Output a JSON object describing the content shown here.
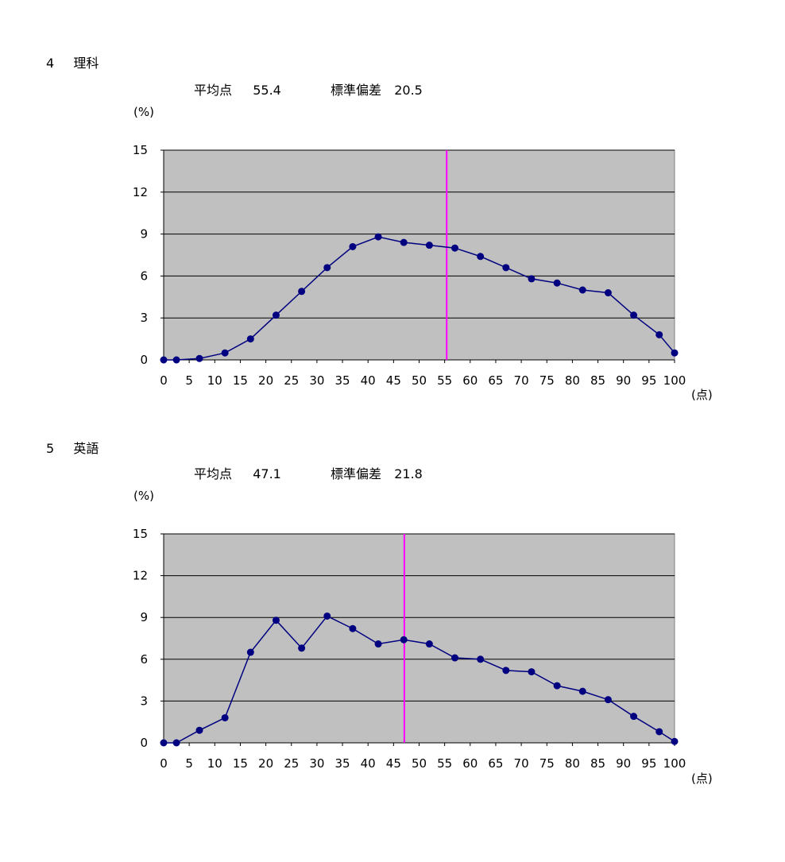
{
  "sections": [
    {
      "number": "4",
      "subject": "理科",
      "mean_label": "平均点",
      "mean_value": "55.4",
      "sd_label": "標準偏差",
      "sd_value": "20.5",
      "y_unit": "(%)",
      "x_unit": "(点)"
    },
    {
      "number": "5",
      "subject": "英語",
      "mean_label": "平均点",
      "mean_value": "47.1",
      "sd_label": "標準偏差",
      "sd_value": "21.8",
      "y_unit": "(%)",
      "x_unit": "(点)"
    }
  ],
  "chart_data": [
    {
      "type": "line",
      "title": "",
      "xlabel": "(点)",
      "ylabel": "(%)",
      "xlim": [
        0,
        100
      ],
      "ylim": [
        0,
        15
      ],
      "x_ticks": [
        0,
        5,
        10,
        15,
        20,
        25,
        30,
        35,
        40,
        45,
        50,
        55,
        60,
        65,
        70,
        75,
        80,
        85,
        90,
        95,
        100
      ],
      "y_ticks": [
        0,
        3,
        6,
        9,
        12,
        15
      ],
      "grid": "horizontal",
      "colors": {
        "plot_bg": "#c0c0c0",
        "series": "#000080",
        "mean_line": "#ff00ff"
      },
      "mean_line_x": 55.4,
      "series": [
        {
          "x": [
            0,
            2.5,
            7,
            12,
            17,
            22,
            27,
            32,
            37,
            42,
            47,
            52,
            57,
            62,
            67,
            72,
            77,
            82,
            87,
            92,
            97,
            100
          ],
          "y": [
            0,
            0,
            0.1,
            0.5,
            1.5,
            3.2,
            4.9,
            6.6,
            8.1,
            8.8,
            8.4,
            8.2,
            8.0,
            7.4,
            6.6,
            5.8,
            5.5,
            5.0,
            4.8,
            3.2,
            1.8,
            0.5
          ]
        }
      ]
    },
    {
      "type": "line",
      "title": "",
      "xlabel": "(点)",
      "ylabel": "(%)",
      "xlim": [
        0,
        100
      ],
      "ylim": [
        0,
        15
      ],
      "x_ticks": [
        0,
        5,
        10,
        15,
        20,
        25,
        30,
        35,
        40,
        45,
        50,
        55,
        60,
        65,
        70,
        75,
        80,
        85,
        90,
        95,
        100
      ],
      "y_ticks": [
        0,
        3,
        6,
        9,
        12,
        15
      ],
      "grid": "horizontal",
      "colors": {
        "plot_bg": "#c0c0c0",
        "series": "#000080",
        "mean_line": "#ff00ff"
      },
      "mean_line_x": 47.1,
      "series": [
        {
          "x": [
            0,
            2.5,
            7,
            12,
            17,
            22,
            27,
            32,
            37,
            42,
            47,
            52,
            57,
            62,
            67,
            72,
            77,
            82,
            87,
            92,
            97,
            100
          ],
          "y": [
            0,
            0,
            0.9,
            1.8,
            6.5,
            8.8,
            6.8,
            9.1,
            8.2,
            7.1,
            7.4,
            7.1,
            6.1,
            6.0,
            5.2,
            5.1,
            4.1,
            3.7,
            3.1,
            1.9,
            0.8,
            0.1
          ]
        }
      ]
    }
  ]
}
